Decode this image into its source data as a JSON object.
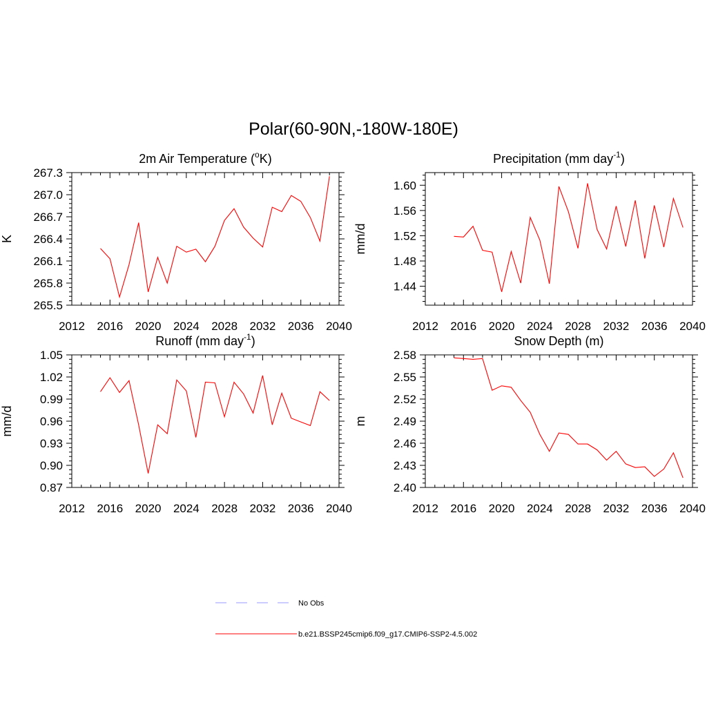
{
  "title": "Polar(60-90N,-180W-180E)",
  "legend": {
    "entries": [
      {
        "label": "No Obs",
        "color": "#9999ff",
        "style": "dashed"
      },
      {
        "label": "b.e21.BSSP245cmip6.f09_g17.CMIP6-SSP2-4.5.002",
        "color": "#ff0000",
        "style": "solid"
      }
    ]
  },
  "chart_data": [
    {
      "type": "line",
      "title": "2m Air Temperature (",
      "title_super": "o",
      "title_end": "K)",
      "ylabel": "K",
      "xlim": [
        2012,
        2040
      ],
      "ylim": [
        265.5,
        267.3
      ],
      "xticks": [
        2012,
        2016,
        2020,
        2024,
        2028,
        2032,
        2036,
        2040
      ],
      "xtick_labels": [
        "2012",
        "2016",
        "2020",
        "2024",
        "2028",
        "2032",
        "2036",
        "2040"
      ],
      "yticks": [
        265.5,
        265.8,
        266.1,
        266.4,
        266.7,
        267.0,
        267.3
      ],
      "ytick_labels": [
        "265.5",
        "265.8",
        "266.1",
        "266.4",
        "266.7",
        "267.0",
        "267.3"
      ],
      "x": [
        2015,
        2016,
        2017,
        2018,
        2019,
        2020,
        2021,
        2022,
        2023,
        2024,
        2025,
        2026,
        2027,
        2028,
        2029,
        2030,
        2031,
        2032,
        2033,
        2034,
        2035,
        2036,
        2037,
        2038,
        2039
      ],
      "series": [
        {
          "name": "b.e21.BSSP245cmip6.f09_g17.CMIP6-SSP2-4.5.002",
          "values": [
            266.27,
            266.13,
            265.61,
            266.05,
            266.62,
            265.68,
            266.15,
            265.8,
            266.3,
            266.22,
            266.26,
            266.09,
            266.3,
            266.65,
            266.81,
            266.56,
            266.41,
            266.29,
            266.83,
            266.77,
            266.99,
            266.91,
            266.69,
            266.37,
            267.25
          ]
        }
      ]
    },
    {
      "type": "line",
      "title": "Precipitation (mm day",
      "title_super": "-1",
      "title_end": ")",
      "ylabel": "mm/d",
      "xlim": [
        2012,
        2040
      ],
      "ylim": [
        1.41,
        1.62
      ],
      "xticks": [
        2012,
        2016,
        2020,
        2024,
        2028,
        2032,
        2036,
        2040
      ],
      "xtick_labels": [
        "2012",
        "2016",
        "2020",
        "2024",
        "2028",
        "2032",
        "2036",
        "2040"
      ],
      "yticks": [
        1.44,
        1.48,
        1.52,
        1.56,
        1.6
      ],
      "ytick_labels": [
        "1.44",
        "1.48",
        "1.52",
        "1.56",
        "1.60"
      ],
      "x": [
        2015,
        2016,
        2017,
        2018,
        2019,
        2020,
        2021,
        2022,
        2023,
        2024,
        2025,
        2026,
        2027,
        2028,
        2029,
        2030,
        2031,
        2032,
        2033,
        2034,
        2035,
        2036,
        2037,
        2038,
        2039
      ],
      "series": [
        {
          "name": "b.e21.BSSP245cmip6.f09_g17.CMIP6-SSP2-4.5.002",
          "values": [
            1.519,
            1.518,
            1.535,
            1.497,
            1.494,
            1.431,
            1.495,
            1.445,
            1.549,
            1.513,
            1.444,
            1.598,
            1.558,
            1.5,
            1.603,
            1.53,
            1.499,
            1.567,
            1.503,
            1.576,
            1.484,
            1.568,
            1.502,
            1.579,
            1.533
          ]
        }
      ]
    },
    {
      "type": "line",
      "title": "Runoff (mm day",
      "title_super": "-1",
      "title_end": ")",
      "ylabel": "mm/d",
      "xlim": [
        2012,
        2040
      ],
      "ylim": [
        0.87,
        1.05
      ],
      "xticks": [
        2012,
        2016,
        2020,
        2024,
        2028,
        2032,
        2036,
        2040
      ],
      "xtick_labels": [
        "2012",
        "2016",
        "2020",
        "2024",
        "2028",
        "2032",
        "2036",
        "2040"
      ],
      "yticks": [
        0.87,
        0.9,
        0.93,
        0.96,
        0.99,
        1.02,
        1.05
      ],
      "ytick_labels": [
        "0.87",
        "0.90",
        "0.93",
        "0.96",
        "0.99",
        "1.02",
        "1.05"
      ],
      "x": [
        2015,
        2016,
        2017,
        2018,
        2019,
        2020,
        2021,
        2022,
        2023,
        2024,
        2025,
        2026,
        2027,
        2028,
        2029,
        2030,
        2031,
        2032,
        2033,
        2034,
        2035,
        2036,
        2037,
        2038,
        2039
      ],
      "series": [
        {
          "name": "b.e21.BSSP245cmip6.f09_g17.CMIP6-SSP2-4.5.002",
          "values": [
            1.0,
            1.019,
            0.999,
            1.015,
            0.955,
            0.889,
            0.955,
            0.943,
            1.016,
            1.001,
            0.938,
            1.013,
            1.012,
            0.966,
            1.013,
            0.997,
            0.971,
            1.022,
            0.955,
            0.998,
            0.964,
            0.959,
            0.954,
            1.0,
            0.988
          ]
        }
      ]
    },
    {
      "type": "line",
      "title": "Snow Depth (m)",
      "title_super": "",
      "title_end": "",
      "ylabel": "m",
      "xlim": [
        2012,
        2040
      ],
      "ylim": [
        2.4,
        2.58
      ],
      "xticks": [
        2012,
        2016,
        2020,
        2024,
        2028,
        2032,
        2036,
        2040
      ],
      "xtick_labels": [
        "2012",
        "2016",
        "2020",
        "2024",
        "2028",
        "2032",
        "2036",
        "2040"
      ],
      "yticks": [
        2.4,
        2.43,
        2.46,
        2.49,
        2.52,
        2.55,
        2.58
      ],
      "ytick_labels": [
        "2.40",
        "2.43",
        "2.46",
        "2.49",
        "2.52",
        "2.55",
        "2.58"
      ],
      "x": [
        2015,
        2016,
        2017,
        2018,
        2019,
        2020,
        2021,
        2022,
        2023,
        2024,
        2025,
        2026,
        2027,
        2028,
        2029,
        2030,
        2031,
        2032,
        2033,
        2034,
        2035,
        2036,
        2037,
        2038,
        2039
      ],
      "series": [
        {
          "name": "b.e21.BSSP245cmip6.f09_g17.CMIP6-SSP2-4.5.002",
          "values": [
            2.576,
            2.575,
            2.574,
            2.575,
            2.532,
            2.538,
            2.536,
            2.518,
            2.502,
            2.472,
            2.449,
            2.474,
            2.472,
            2.459,
            2.459,
            2.451,
            2.437,
            2.449,
            2.432,
            2.427,
            2.428,
            2.415,
            2.425,
            2.447,
            2.413
          ]
        }
      ]
    }
  ]
}
